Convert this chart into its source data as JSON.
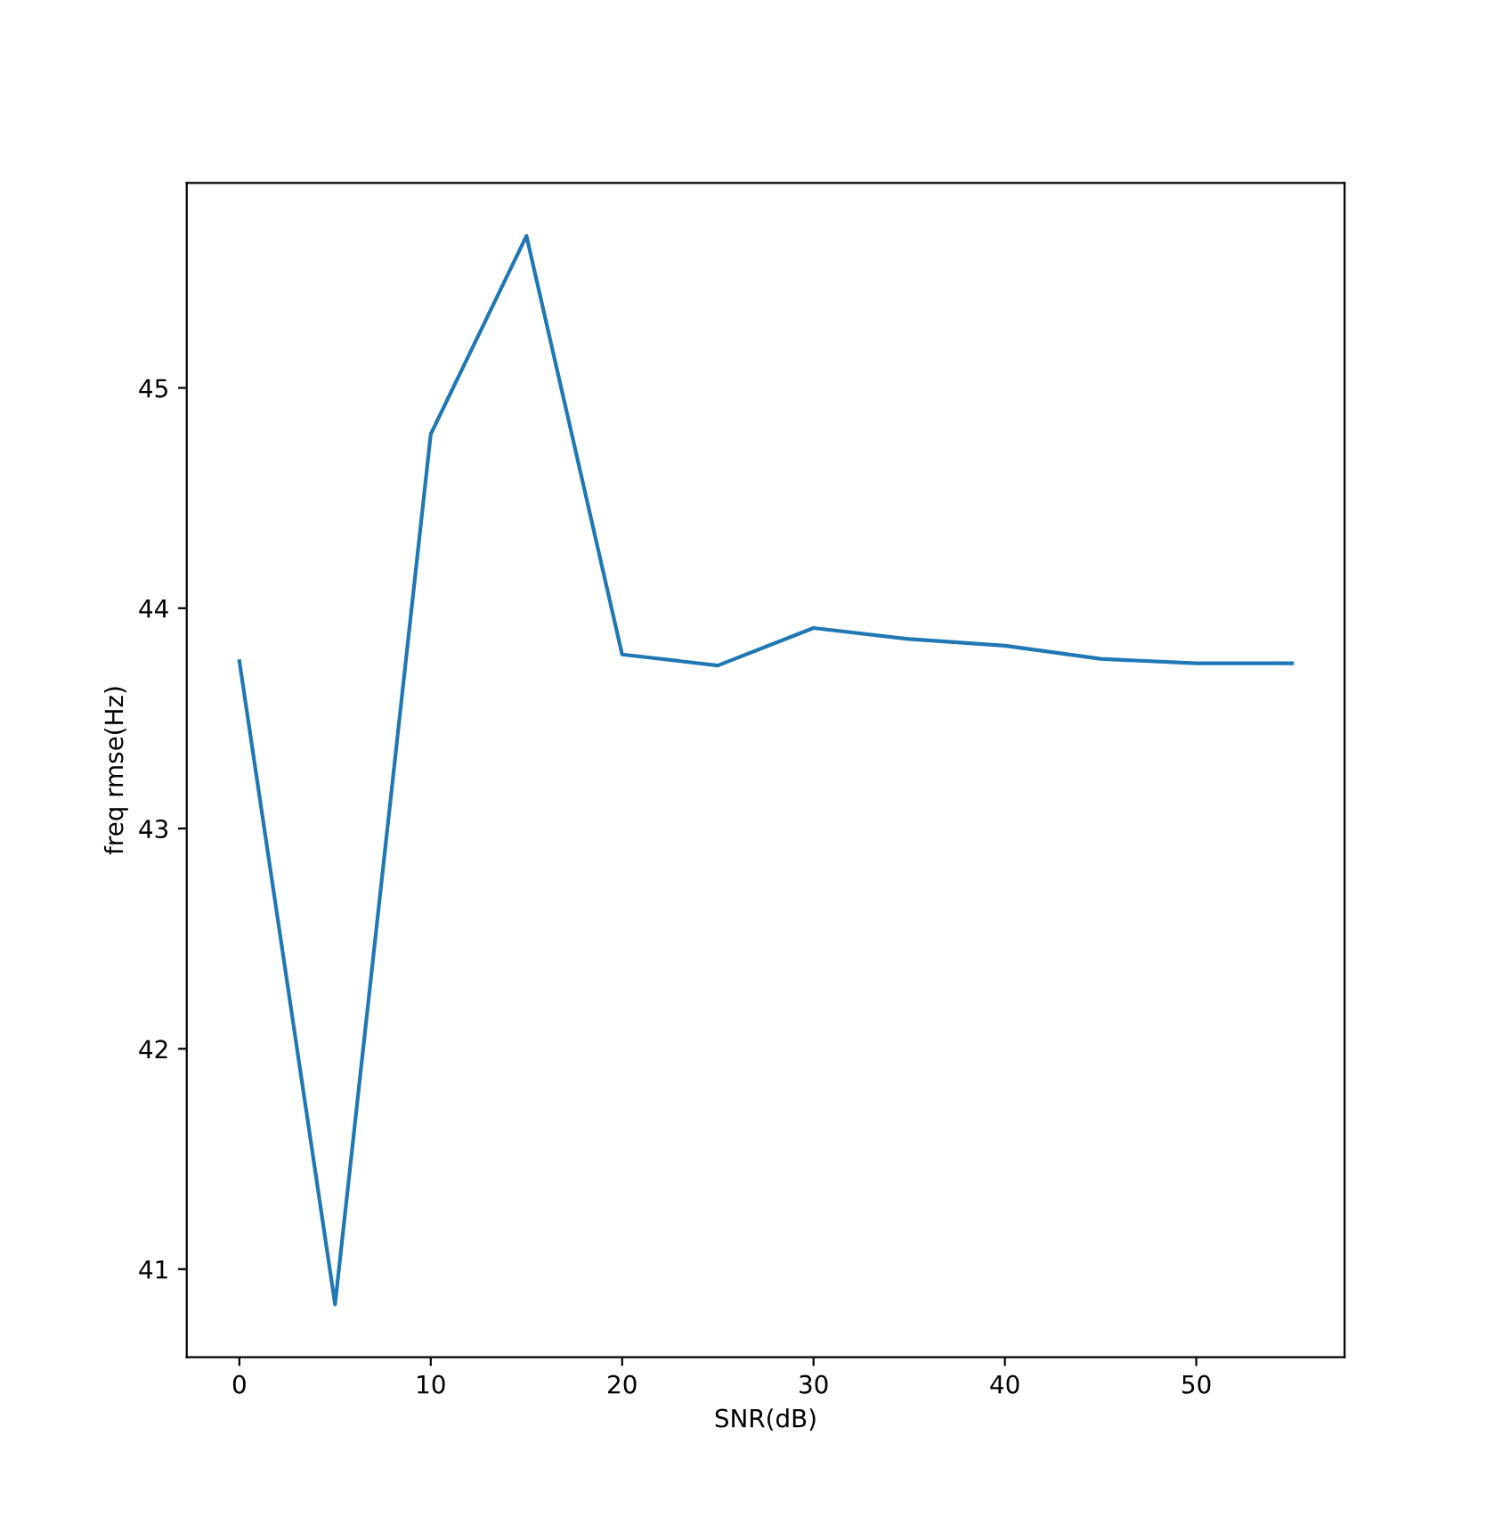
{
  "chart_data": {
    "type": "line",
    "xlabel": "SNR(dB)",
    "ylabel": "freq rmse(Hz)",
    "x": [
      0,
      5,
      10,
      15,
      20,
      25,
      30,
      35,
      40,
      45,
      50,
      55
    ],
    "series": [
      {
        "color": "#1f77b4",
        "values": [
          43.76,
          40.84,
          44.79,
          45.69,
          43.79,
          43.74,
          43.91,
          43.86,
          43.83,
          43.77,
          43.75,
          43.75
        ]
      }
    ],
    "xlim": [
      -2.75,
      57.75
    ],
    "xticks": [
      0,
      10,
      20,
      30,
      40,
      50
    ],
    "ylim": [
      40.6,
      45.93
    ],
    "yticks": [
      41,
      42,
      43,
      44,
      45
    ],
    "grid": false,
    "marker": "none",
    "line_style": "solid"
  }
}
